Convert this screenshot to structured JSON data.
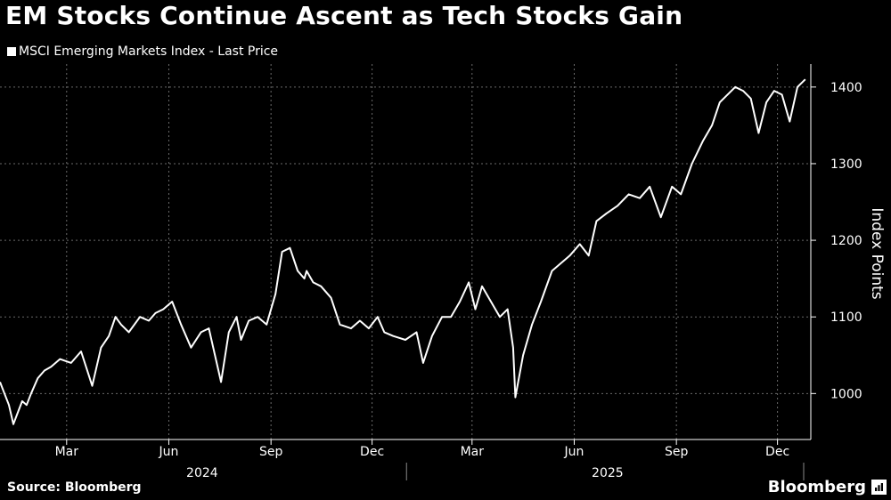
{
  "title": "EM Stocks Continue Ascent as Tech Stocks Gain",
  "legend_label": "MSCI Emerging Markets Index - Last Price",
  "source": "Source: Bloomberg",
  "brand": "Bloomberg",
  "colors": {
    "background": "#000000",
    "line": "#ffffff",
    "grid": "#6a6a6a"
  },
  "chart_data": {
    "type": "line",
    "title": "EM Stocks Continue Ascent as Tech Stocks Gain",
    "ylabel": "Index Points",
    "xlabel": "",
    "ylim": [
      940,
      1430
    ],
    "xlim": [
      "2024-01-01",
      "2025-12-31"
    ],
    "y_ticks": [
      1000,
      1100,
      1200,
      1300,
      1400
    ],
    "y_tick_labels": [
      "1000",
      "1100",
      "1200",
      "1300",
      "1400"
    ],
    "x_month_ticks": [
      {
        "date": "2024-03-01",
        "label": "Mar"
      },
      {
        "date": "2024-06-01",
        "label": "Jun"
      },
      {
        "date": "2024-09-01",
        "label": "Sep"
      },
      {
        "date": "2024-12-01",
        "label": "Dec"
      },
      {
        "date": "2025-03-01",
        "label": "Mar"
      },
      {
        "date": "2025-06-01",
        "label": "Jun"
      },
      {
        "date": "2025-09-01",
        "label": "Sep"
      },
      {
        "date": "2025-12-01",
        "label": "Dec"
      }
    ],
    "x_year_labels": [
      {
        "date": "2024-07-01",
        "label": "2024"
      },
      {
        "date": "2025-07-01",
        "label": "2025"
      }
    ],
    "x_year_separators": [
      "2025-01-01"
    ],
    "grid": true,
    "legend_position": "top-left",
    "series": [
      {
        "name": "MSCI Emerging Markets Index - Last Price",
        "x": [
          "2024-01-01",
          "2024-01-05",
          "2024-01-09",
          "2024-01-13",
          "2024-01-17",
          "2024-01-21",
          "2024-01-25",
          "2024-01-29",
          "2024-02-04",
          "2024-02-10",
          "2024-02-16",
          "2024-02-24",
          "2024-03-05",
          "2024-03-14",
          "2024-03-24",
          "2024-04-01",
          "2024-04-08",
          "2024-04-14",
          "2024-04-19",
          "2024-04-26",
          "2024-05-06",
          "2024-05-14",
          "2024-05-20",
          "2024-05-27",
          "2024-06-04",
          "2024-06-12",
          "2024-06-21",
          "2024-06-30",
          "2024-07-07",
          "2024-07-11",
          "2024-07-18",
          "2024-07-25",
          "2024-08-01",
          "2024-08-05",
          "2024-08-12",
          "2024-08-20",
          "2024-08-28",
          "2024-09-05",
          "2024-09-11",
          "2024-09-18",
          "2024-09-25",
          "2024-10-01",
          "2024-10-03",
          "2024-10-09",
          "2024-10-16",
          "2024-10-25",
          "2024-11-02",
          "2024-11-12",
          "2024-11-20",
          "2024-11-28",
          "2024-12-06",
          "2024-12-12",
          "2024-12-20",
          "2024-12-31",
          "2025-01-10",
          "2025-01-16",
          "2025-01-24",
          "2025-02-02",
          "2025-02-10",
          "2025-02-18",
          "2025-02-26",
          "2025-03-04",
          "2025-03-10",
          "2025-03-18",
          "2025-03-26",
          "2025-04-02",
          "2025-04-07",
          "2025-04-09",
          "2025-04-16",
          "2025-04-24",
          "2025-05-02",
          "2025-05-12",
          "2025-05-20",
          "2025-05-28",
          "2025-06-06",
          "2025-06-14",
          "2025-06-21",
          "2025-06-30",
          "2025-07-10",
          "2025-07-20",
          "2025-07-30",
          "2025-08-08",
          "2025-08-18",
          "2025-08-28",
          "2025-09-05",
          "2025-09-15",
          "2025-09-25",
          "2025-10-03",
          "2025-10-10",
          "2025-10-17",
          "2025-10-24",
          "2025-10-31",
          "2025-11-07",
          "2025-11-14",
          "2025-11-21",
          "2025-11-28",
          "2025-12-05",
          "2025-12-12",
          "2025-12-19",
          "2025-12-26"
        ],
        "values": [
          1015,
          1000,
          985,
          960,
          975,
          990,
          985,
          1000,
          1020,
          1030,
          1035,
          1045,
          1040,
          1055,
          1010,
          1060,
          1075,
          1100,
          1090,
          1080,
          1100,
          1095,
          1105,
          1110,
          1120,
          1090,
          1060,
          1080,
          1085,
          1060,
          1015,
          1080,
          1100,
          1070,
          1095,
          1100,
          1090,
          1130,
          1185,
          1190,
          1160,
          1150,
          1160,
          1145,
          1140,
          1125,
          1090,
          1085,
          1095,
          1085,
          1100,
          1080,
          1075,
          1070,
          1080,
          1040,
          1075,
          1100,
          1100,
          1120,
          1145,
          1110,
          1140,
          1120,
          1100,
          1110,
          1060,
          995,
          1050,
          1090,
          1120,
          1160,
          1170,
          1180,
          1195,
          1180,
          1225,
          1235,
          1245,
          1260,
          1255,
          1270,
          1230,
          1270,
          1260,
          1300,
          1330,
          1350,
          1380,
          1390,
          1400,
          1395,
          1385,
          1340,
          1380,
          1395,
          1390,
          1355,
          1400,
          1410
        ]
      }
    ]
  }
}
